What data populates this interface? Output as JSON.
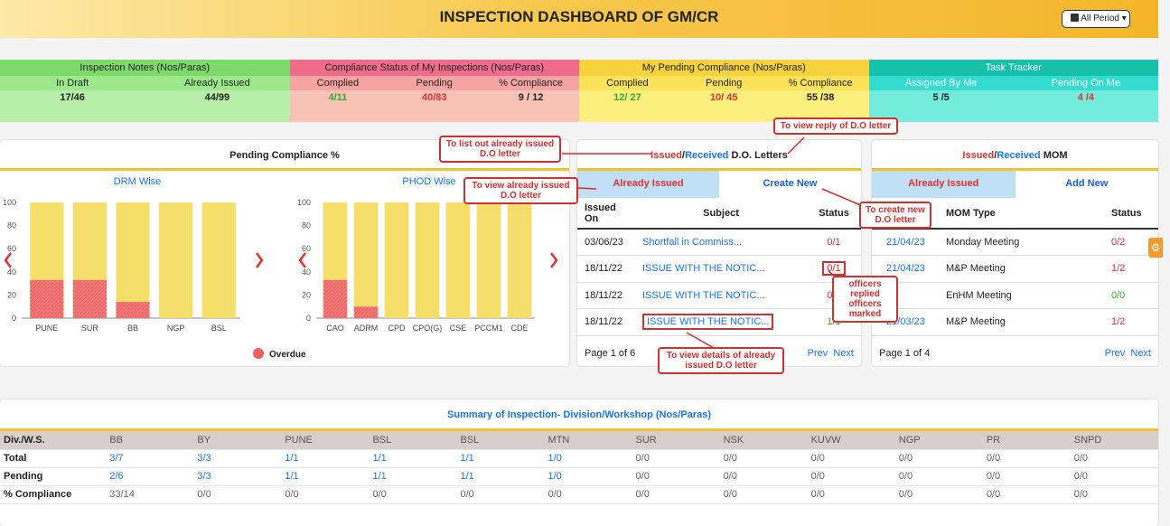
{
  "header": {
    "title": "INSPECTION DASHBOARD OF GM/CR",
    "period_label": "All Period"
  },
  "cards": [
    {
      "title": "Inspection Notes (Nos/Paras)",
      "labels": [
        "In Draft",
        "Already Issued"
      ],
      "values": [
        "17/46",
        "44/99"
      ],
      "title_bg": "#7ed96b",
      "label_bg": "#9de88d",
      "value_bg": "#b7efa8"
    },
    {
      "title": "Compliance Status of My Inspections (Nos/Paras)",
      "labels": [
        "Complied",
        "Pending",
        "% Compliance"
      ],
      "values": [
        "4/11",
        "40/83",
        "9 / 12"
      ],
      "title_bg": "#f06c8c",
      "label_bg": "#f5a3a3",
      "value_bg": "#f8c2b7"
    },
    {
      "title": "My Pending Compliance (Nos/Paras)",
      "labels": [
        "Complied",
        "Pending",
        "% Compliance"
      ],
      "values": [
        "12/ 27",
        "10/ 45",
        "55 /38"
      ],
      "title_bg": "#f6d23e",
      "label_bg": "#fae35b",
      "value_bg": "#fcef7e"
    },
    {
      "title": "Task Tracker",
      "labels": [
        "Assigned By Me",
        "Pending On Me"
      ],
      "values": [
        "5 /5",
        "4 /4"
      ],
      "title_bg": "#17c0a8",
      "label_bg": "#34dcd0",
      "value_bg": "#73ecdd"
    }
  ],
  "pending_panel": {
    "title": "Pending Compliance %",
    "legend": "Overdue"
  },
  "chart_data": [
    {
      "type": "bar",
      "title": "DRM Wise",
      "categories": [
        "PUNE",
        "SUR",
        "BB",
        "NGP",
        "BSL"
      ],
      "values": [
        100,
        100,
        100,
        100,
        100
      ],
      "overdue": [
        33,
        33,
        14,
        0,
        0
      ],
      "ylim": [
        0,
        100
      ],
      "yticks": [
        0,
        20,
        40,
        60,
        80,
        100
      ]
    },
    {
      "type": "bar",
      "title": "PHOD Wise",
      "categories": [
        "CAO",
        "ADRM",
        "CPD",
        "CPO(G)",
        "CSE",
        "PCCM1",
        "CDE"
      ],
      "values": [
        100,
        100,
        100,
        100,
        100,
        100,
        100
      ],
      "overdue": [
        33,
        10,
        0,
        0,
        0,
        0,
        0
      ],
      "ylim": [
        0,
        100
      ],
      "yticks": [
        0,
        20,
        40,
        60,
        80,
        100
      ]
    }
  ],
  "do_panel": {
    "title_issued": "Issued",
    "title_sep": "/",
    "title_received": "Received",
    "title_rest": " D.O. Letters",
    "tab_active": "Already Issued",
    "tab_inactive": "Create New",
    "headers": [
      "Issued On",
      "Subject",
      "Status"
    ],
    "rows": [
      {
        "date": "03/06/23",
        "subject": "Shortfall in Commiss...",
        "status": "0/1",
        "color": "#e03030"
      },
      {
        "date": "18/11/22",
        "subject": "ISSUE WITH THE NOTIC...",
        "status": "0/1",
        "color": "#e03030"
      },
      {
        "date": "18/11/22",
        "subject": "ISSUE WITH THE NOTIC...",
        "status": "0/1",
        "color": "#e03030"
      },
      {
        "date": "18/11/22",
        "subject": "ISSUE WITH THE NOTIC...",
        "status": "1/1",
        "color": "#2eae2e"
      }
    ],
    "page": "Page 1 of 6",
    "prev": "Prev",
    "next": "Next"
  },
  "mom_panel": {
    "title_issued": "Issued",
    "title_sep": "/",
    "title_received": "Received",
    "title_rest": " MOM",
    "tab_active": "Already Issued",
    "tab_inactive": "Add New",
    "headers": [
      "",
      "MOM Type",
      "Status"
    ],
    "rows": [
      {
        "date": "21/04/23",
        "type": "Monday Meeting",
        "status": "0/2",
        "color": "#e03030"
      },
      {
        "date": "21/04/23",
        "type": "M&P Meeting",
        "status": "1/2",
        "color": "#e03030"
      },
      {
        "date": "3",
        "type": "EnHM Meeting",
        "status": "0/0",
        "color": "#2eae2e"
      },
      {
        "date": "21/03/23",
        "type": "M&P Meeting",
        "status": "1/2",
        "color": "#e03030"
      }
    ],
    "page": "Page 1 of 4",
    "prev": "Prev",
    "next": "Next"
  },
  "callouts": {
    "list_issued": "To list out already issued D.O letter",
    "view_reply": "To view reply of D.O letter",
    "view_issued": "To view already issued D.O letter",
    "create_new": "To create new D.O letter",
    "officers": "officers replied officers marked",
    "details": "To view details of already issued D.O letter"
  },
  "summary": {
    "title": "Summary of Inspection- Division/Workshop (Nos/Paras)",
    "header": [
      "Div./W.S.",
      "BB",
      "BY",
      "PUNE",
      "BSL",
      "BSL",
      "MTN",
      "SUR",
      "NSK",
      "KUVW",
      "NGP",
      "PR",
      "SNPD"
    ],
    "rows": [
      {
        "label": "Total",
        "cells": [
          "3/7",
          "3/3",
          "1/1",
          "1/1",
          "1/1",
          "1/0",
          "0/0",
          "0/0",
          "0/0",
          "0/0",
          "0/0",
          "0/0"
        ]
      },
      {
        "label": "Pending",
        "cells": [
          "2/6",
          "3/3",
          "1/1",
          "1/1",
          "1/1",
          "1/0",
          "0/0",
          "0/0",
          "0/0",
          "0/0",
          "0/0",
          "0/0"
        ]
      },
      {
        "label": "% Compliance",
        "cells": [
          "33/14",
          "0/0",
          "0/0",
          "0/0",
          "0/0",
          "0/0",
          "0/0",
          "0/0",
          "0/0",
          "0/0",
          "0/0",
          "0/0"
        ]
      }
    ]
  }
}
